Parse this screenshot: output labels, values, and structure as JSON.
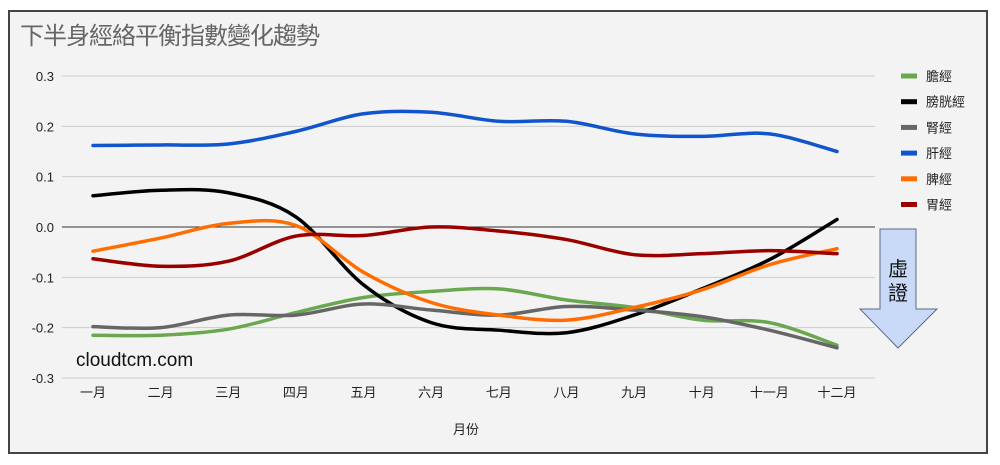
{
  "chart_data": {
    "type": "line",
    "title": "下半身經絡平衡指數變化趨勢",
    "xlabel": "月份",
    "ylabel": "",
    "ylim": [
      -0.3,
      0.3
    ],
    "yticks": [
      "0.3",
      "0.2",
      "0.1",
      "0.0",
      "-0.1",
      "-0.2",
      "-0.3"
    ],
    "ytick_values": [
      0.3,
      0.2,
      0.1,
      0.0,
      -0.1,
      -0.2,
      -0.3
    ],
    "categories": [
      "一月",
      "二月",
      "三月",
      "四月",
      "五月",
      "六月",
      "七月",
      "八月",
      "九月",
      "十月",
      "十一月",
      "十二月"
    ],
    "grid": true,
    "legend_position": "right",
    "series": [
      {
        "name": "膽經",
        "color": "#6aa84f",
        "values": [
          -0.215,
          -0.215,
          -0.203,
          -0.17,
          -0.14,
          -0.128,
          -0.123,
          -0.145,
          -0.16,
          -0.185,
          -0.19,
          -0.235
        ]
      },
      {
        "name": "膀胱經",
        "color": "#000000",
        "values": [
          0.062,
          0.073,
          0.068,
          0.02,
          -0.115,
          -0.19,
          -0.205,
          -0.21,
          -0.175,
          -0.123,
          -0.065,
          0.015
        ]
      },
      {
        "name": "腎經",
        "color": "#666666",
        "values": [
          -0.198,
          -0.2,
          -0.175,
          -0.175,
          -0.153,
          -0.165,
          -0.175,
          -0.158,
          -0.165,
          -0.178,
          -0.205,
          -0.24
        ]
      },
      {
        "name": "肝經",
        "color": "#1155cc",
        "values": [
          0.162,
          0.163,
          0.165,
          0.19,
          0.225,
          0.228,
          0.21,
          0.21,
          0.185,
          0.18,
          0.185,
          0.15
        ]
      },
      {
        "name": "脾經",
        "color": "#ff6d01",
        "values": [
          -0.048,
          -0.022,
          0.007,
          0.003,
          -0.09,
          -0.15,
          -0.175,
          -0.185,
          -0.16,
          -0.125,
          -0.075,
          -0.043
        ]
      },
      {
        "name": "胃經",
        "color": "#990000",
        "values": [
          -0.063,
          -0.078,
          -0.068,
          -0.018,
          -0.017,
          0.0,
          -0.008,
          -0.025,
          -0.055,
          -0.053,
          -0.047,
          -0.053
        ]
      }
    ],
    "annotations": {
      "arrow_label": "虛證",
      "watermark": "cloudtcm.com"
    }
  }
}
